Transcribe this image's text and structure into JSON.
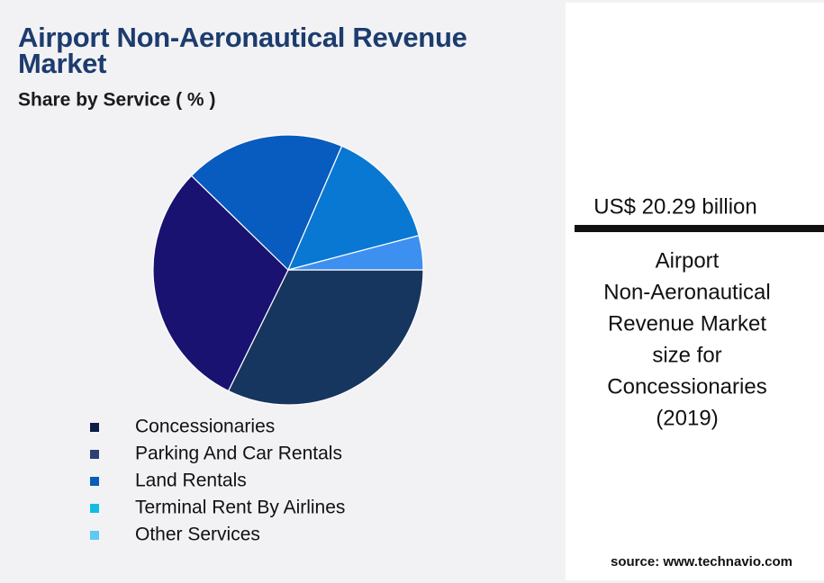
{
  "chart_data": {
    "type": "pie",
    "title": "Airport Non-Aeronautical Revenue Market",
    "subtitle": "Share by Service ( % )",
    "categories": [
      "Concessionaries",
      "Parking And Car Rentals",
      "Land Rentals",
      "Terminal Rent By Airlines",
      "Other Services"
    ],
    "values": [
      32.3,
      30.0,
      19.2,
      14.4,
      4.1
    ],
    "colors": [
      "#17365f",
      "#1a1270",
      "#085bbf",
      "#0878d2",
      "#3d8ff0"
    ],
    "legend_colors": [
      "#0e1d45",
      "#2e4072",
      "#0a5cb8",
      "#12bde2",
      "#5ccbf0"
    ]
  },
  "highlight": {
    "value_text": "US$ 20.29 billion",
    "description": [
      "Airport",
      "Non-Aeronautical",
      "Revenue Market",
      "size for",
      "Concessionaries",
      "(2019)"
    ]
  },
  "source": "source: www.technavio.com"
}
